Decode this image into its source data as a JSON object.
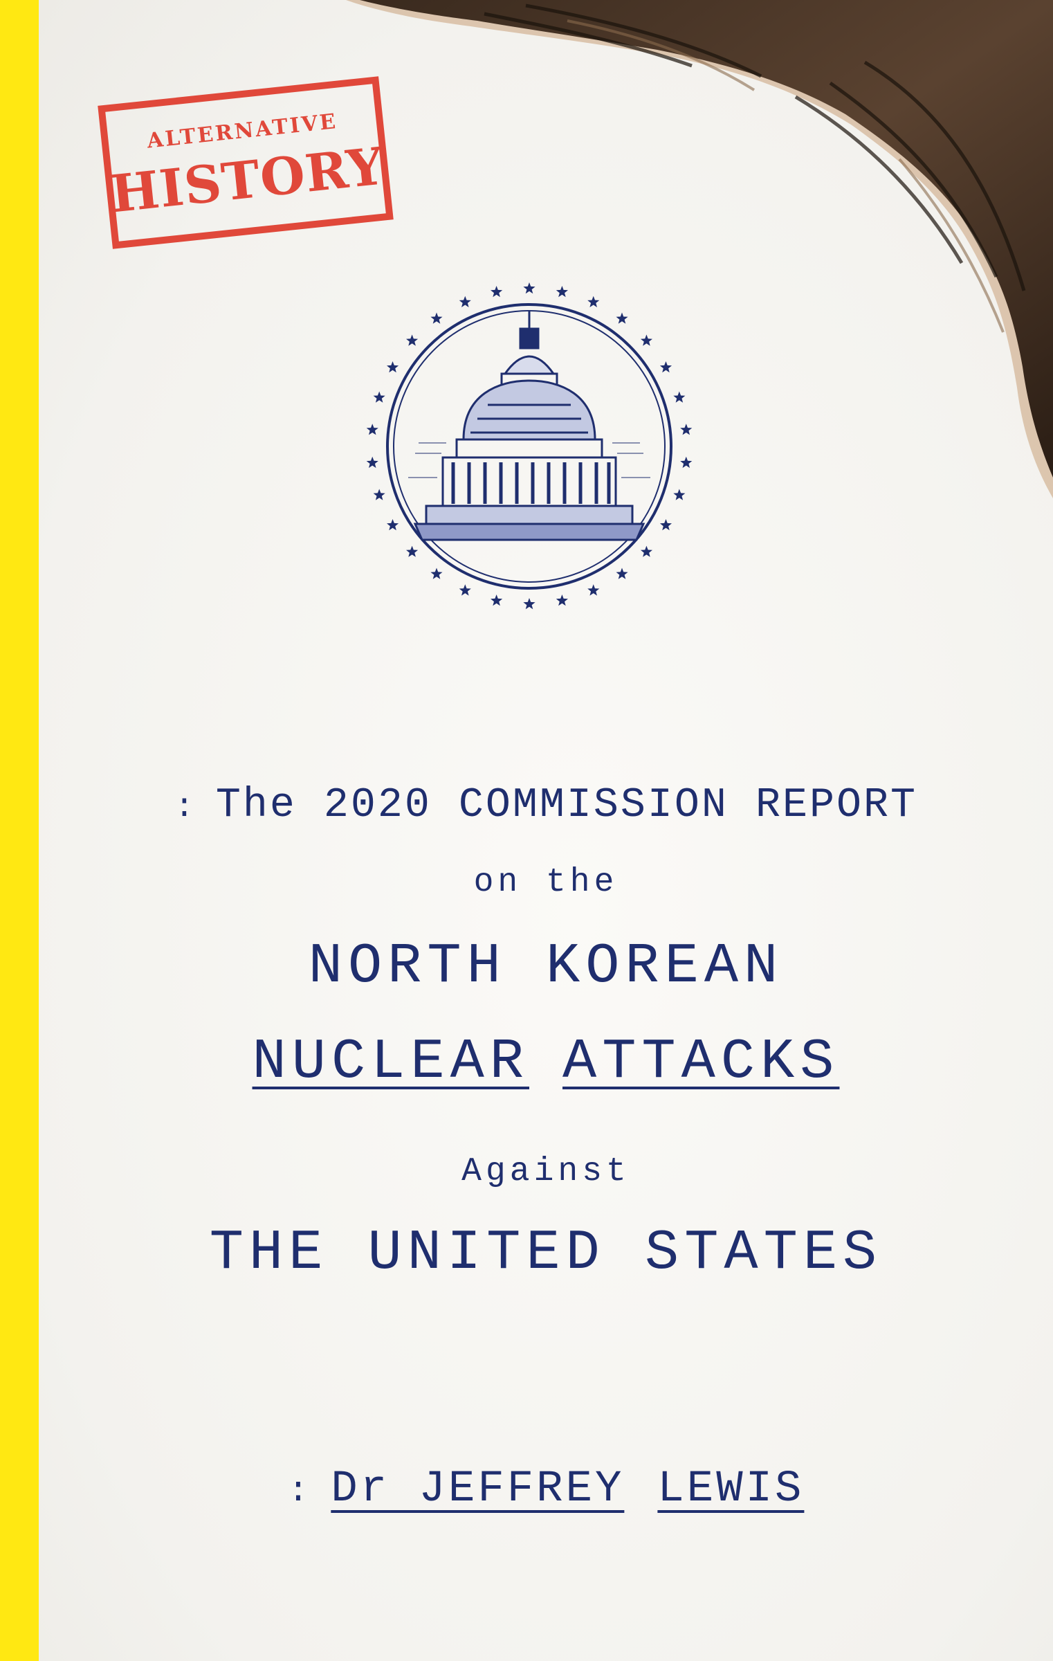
{
  "stamp": {
    "top": "ALTERNATIVE",
    "bottom": "HISTORY"
  },
  "seal": {
    "icon": "capitol-dome-icon"
  },
  "title": {
    "prefix": ":",
    "line1": "The 2020 COMMISSION REPORT",
    "line2": "on the",
    "line3": "NORTH KOREAN",
    "line4a": "NUCLEAR",
    "line4b": "ATTACKS",
    "line5": "Against",
    "line6": "THE UNITED STATES"
  },
  "author": {
    "prefix": ":",
    "part1": "Dr JEFFREY",
    "part2": "LEWIS"
  },
  "colors": {
    "navy": "#1f2e6e",
    "stamp_red": "#e0483a",
    "spine_yellow": "#ffe812"
  }
}
